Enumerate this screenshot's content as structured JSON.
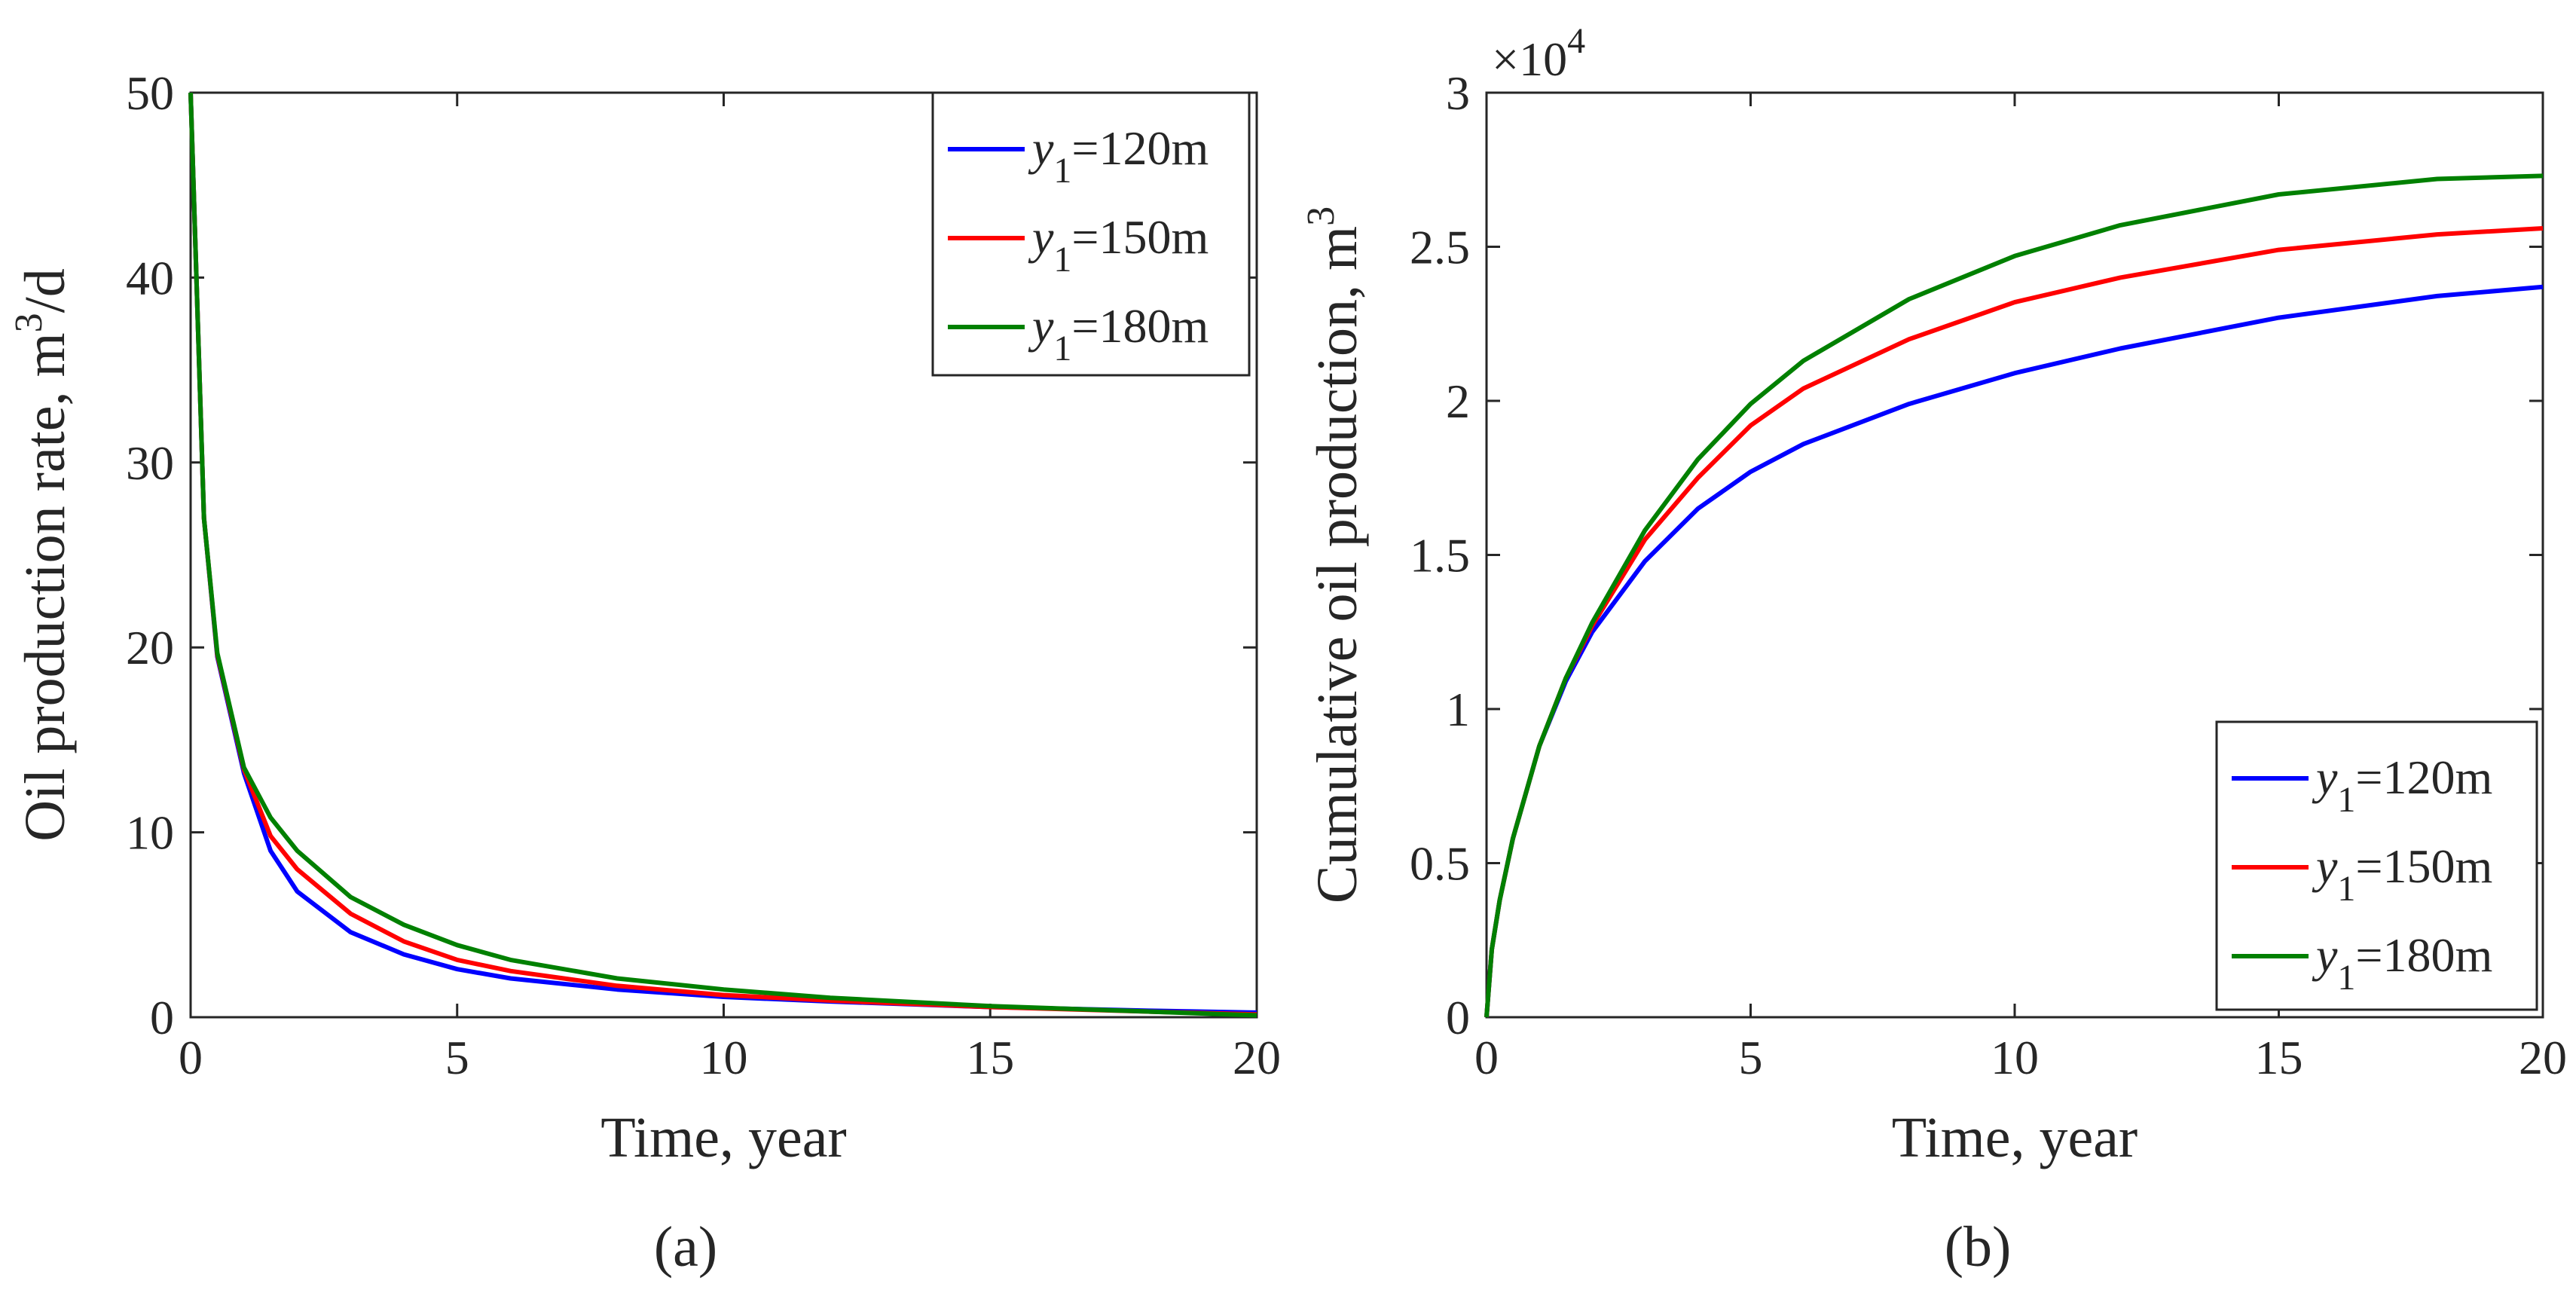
{
  "figure_captions": [
    "(a)",
    "(b)"
  ],
  "legend_label_prefix": "y",
  "legend_label_subscript": "1",
  "chart_data": [
    {
      "id": "a",
      "type": "line",
      "caption": "(a)",
      "title": "",
      "xlabel": "Time, year",
      "ylabel_prefix": "Oil production rate, m",
      "ylabel_superscript": "3",
      "ylabel_suffix": "/d",
      "xlim": [
        0,
        20
      ],
      "ylim": [
        0,
        50
      ],
      "xticks": [
        "0",
        "5",
        "10",
        "15",
        "20"
      ],
      "yticks": [
        "0",
        "10",
        "20",
        "30",
        "40",
        "50"
      ],
      "legend_position": "top-right",
      "x": [
        0,
        0.25,
        0.5,
        1,
        1.5,
        2,
        3,
        4,
        5,
        6,
        8,
        10,
        12,
        15,
        18,
        20
      ],
      "series": [
        {
          "name": "=120m",
          "color": "#0000ff",
          "values": [
            50,
            27,
            19.5,
            13.2,
            9.0,
            6.8,
            4.6,
            3.4,
            2.6,
            2.1,
            1.5,
            1.1,
            0.85,
            0.55,
            0.35,
            0.25
          ]
        },
        {
          "name": "=150m",
          "color": "#ff0000",
          "values": [
            50,
            27,
            19.6,
            13.4,
            9.8,
            8.0,
            5.6,
            4.1,
            3.1,
            2.5,
            1.7,
            1.2,
            0.9,
            0.55,
            0.3,
            0.15
          ]
        },
        {
          "name": "=180m",
          "color": "#008000",
          "values": [
            50,
            27,
            19.7,
            13.5,
            10.8,
            9.0,
            6.5,
            5.0,
            3.9,
            3.1,
            2.1,
            1.5,
            1.05,
            0.6,
            0.3,
            0.1
          ]
        }
      ]
    },
    {
      "id": "b",
      "type": "line",
      "caption": "(b)",
      "title": "",
      "xlabel": "Time, year",
      "ylabel_prefix": "Cumulative oil production, m",
      "ylabel_superscript": "3",
      "ylabel_suffix": "",
      "axis_multiplier_base": "×10",
      "axis_multiplier_exponent": "4",
      "xlim": [
        0,
        20
      ],
      "ylim": [
        0,
        3
      ],
      "xticks": [
        "0",
        "5",
        "10",
        "15",
        "20"
      ],
      "yticks": [
        "0",
        "0.5",
        "1",
        "1.5",
        "2",
        "2.5",
        "3"
      ],
      "legend_position": "bottom-right",
      "x": [
        0,
        0.1,
        0.25,
        0.5,
        1,
        1.5,
        2,
        3,
        4,
        5,
        6,
        8,
        10,
        12,
        15,
        18,
        20
      ],
      "series": [
        {
          "name": "=120m",
          "color": "#0000ff",
          "values": [
            0,
            0.22,
            0.38,
            0.58,
            0.88,
            1.09,
            1.25,
            1.48,
            1.65,
            1.77,
            1.86,
            1.99,
            2.09,
            2.17,
            2.27,
            2.34,
            2.37
          ]
        },
        {
          "name": "=150m",
          "color": "#ff0000",
          "values": [
            0,
            0.22,
            0.38,
            0.58,
            0.88,
            1.1,
            1.27,
            1.55,
            1.75,
            1.92,
            2.04,
            2.2,
            2.32,
            2.4,
            2.49,
            2.54,
            2.56
          ]
        },
        {
          "name": "=180m",
          "color": "#008000",
          "values": [
            0,
            0.22,
            0.38,
            0.58,
            0.88,
            1.1,
            1.28,
            1.58,
            1.81,
            1.99,
            2.13,
            2.33,
            2.47,
            2.57,
            2.67,
            2.72,
            2.73
          ]
        }
      ]
    }
  ]
}
